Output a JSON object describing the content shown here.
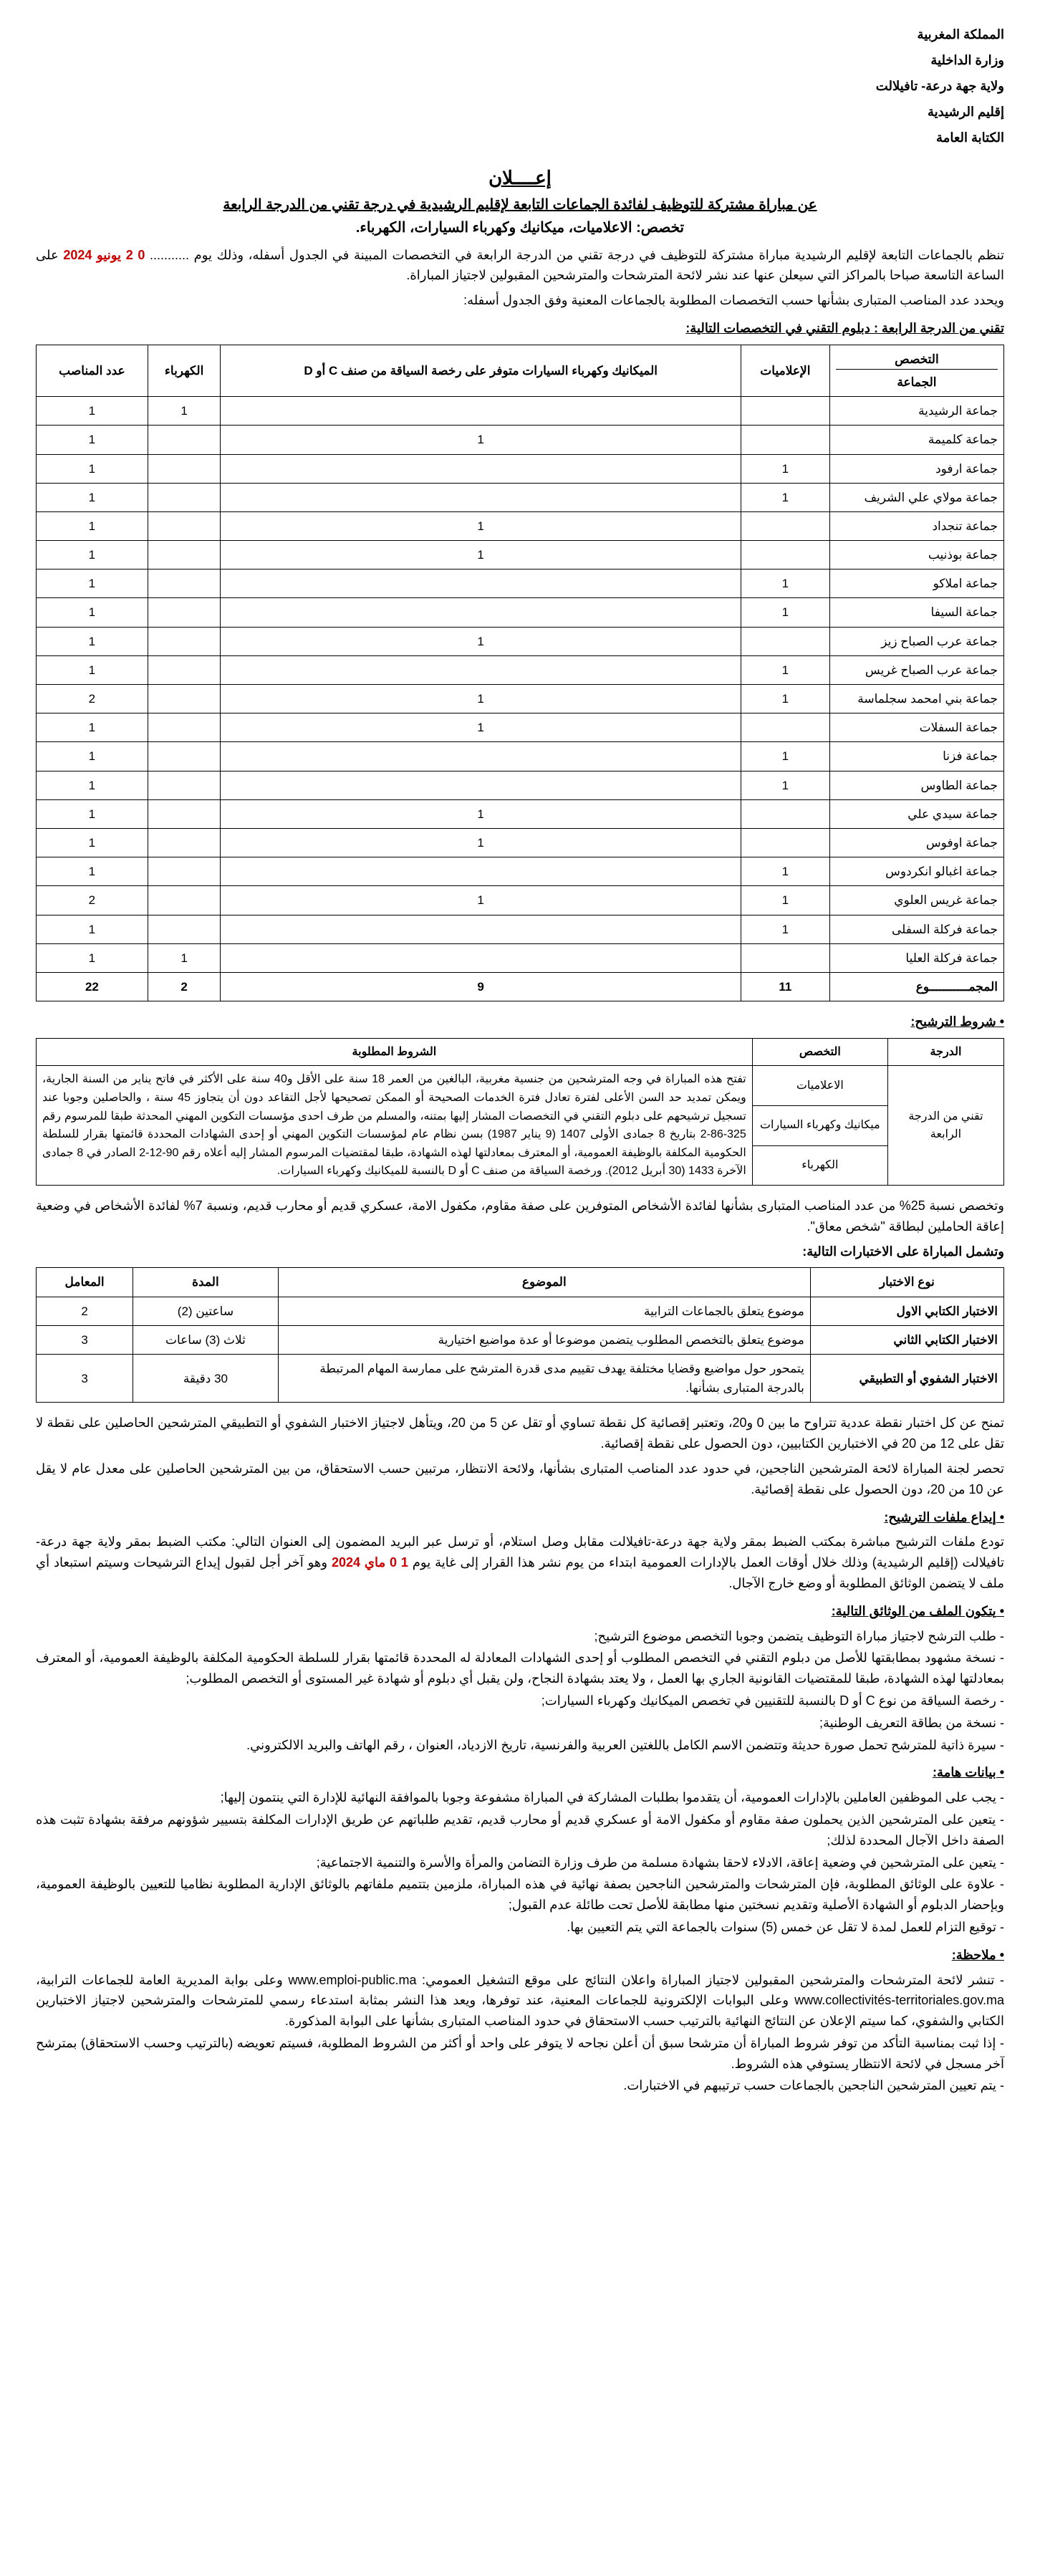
{
  "header": {
    "l1": "المملكة المغربية",
    "l2": "وزارة الداخلية",
    "l3": "ولاية جهة درعة- تافيلالت",
    "l4": "إقليم الرشيدية",
    "l5": "الكتابة العامة"
  },
  "title": {
    "main": "إعــــلان",
    "sub": "عن مباراة مشتركة للتوظيف لفائدة الجماعات التابعة لإقليم الرشيدية في درجة تقني من الدرجة الرابعة",
    "spec": "تخصص: الاعلاميات، ميكانيك وكهرباء السيارات، الكهرباء."
  },
  "intro": {
    "p1": "تنظم بالجماعات التابعة لإقليم الرشيدية مباراة مشتركة للتوظيف في درجة تقني من الدرجة الرابعة في التخصصات المبينة في الجدول أسفله، وذلك يوم",
    "date1_pre": "...........",
    "date1_num": "0 2",
    "date1_mid": "يونيو",
    "date1_year": "2024",
    "p1b": "على الساعة التاسعة صباحا بالمراكز التي سيعلن عنها عند نشر لائحة المترشحات والمترشحين المقبولين لاجتياز المباراة.",
    "p2": "ويحدد عدد المناصب المتبارى بشأنها حسب التخصصات المطلوبة بالجماعات المعنية وفق الجدول أسفله:"
  },
  "section1_title": "تقني من الدرجة الرابعة : دبلوم التقني في التخصصات التالية:",
  "table1": {
    "head": {
      "c_spec": "التخصص",
      "c_jam": "الجماعة",
      "c_info": "الإعلاميات",
      "c_mech": "الميكانيك وكهرباء السيارات متوفر على رخصة السياقة من صنف C أو D",
      "c_elec": "الكهرباء",
      "c_count": "عدد المناصب"
    },
    "rows": [
      {
        "jam": "جماعة الرشيدية",
        "info": "",
        "mech": "",
        "elec": "1",
        "cnt": "1"
      },
      {
        "jam": "جماعة كلميمة",
        "info": "",
        "mech": "1",
        "elec": "",
        "cnt": "1"
      },
      {
        "jam": "جماعة ارفود",
        "info": "1",
        "mech": "",
        "elec": "",
        "cnt": "1"
      },
      {
        "jam": "جماعة مولاي علي الشريف",
        "info": "1",
        "mech": "",
        "elec": "",
        "cnt": "1"
      },
      {
        "jam": "جماعة تنجداد",
        "info": "",
        "mech": "1",
        "elec": "",
        "cnt": "1"
      },
      {
        "jam": "جماعة بوذنيب",
        "info": "",
        "mech": "1",
        "elec": "",
        "cnt": "1"
      },
      {
        "jam": "جماعة املاكو",
        "info": "1",
        "mech": "",
        "elec": "",
        "cnt": "1"
      },
      {
        "jam": "جماعة السيفا",
        "info": "1",
        "mech": "",
        "elec": "",
        "cnt": "1"
      },
      {
        "jam": "جماعة عرب الصباح زيز",
        "info": "",
        "mech": "1",
        "elec": "",
        "cnt": "1"
      },
      {
        "jam": "جماعة عرب الصباح غريس",
        "info": "1",
        "mech": "",
        "elec": "",
        "cnt": "1"
      },
      {
        "jam": "جماعة بني امحمد سجلماسة",
        "info": "1",
        "mech": "1",
        "elec": "",
        "cnt": "2"
      },
      {
        "jam": "جماعة السفلات",
        "info": "",
        "mech": "1",
        "elec": "",
        "cnt": "1"
      },
      {
        "jam": "جماعة فزنا",
        "info": "1",
        "mech": "",
        "elec": "",
        "cnt": "1"
      },
      {
        "jam": "جماعة الطاوس",
        "info": "1",
        "mech": "",
        "elec": "",
        "cnt": "1"
      },
      {
        "jam": "جماعة سيدي علي",
        "info": "",
        "mech": "1",
        "elec": "",
        "cnt": "1"
      },
      {
        "jam": "جماعة اوفوس",
        "info": "",
        "mech": "1",
        "elec": "",
        "cnt": "1"
      },
      {
        "jam": "جماعة اغبالو انكردوس",
        "info": "1",
        "mech": "",
        "elec": "",
        "cnt": "1"
      },
      {
        "jam": "جماعة غريس العلوي",
        "info": "1",
        "mech": "1",
        "elec": "",
        "cnt": "2"
      },
      {
        "jam": "جماعة فركلة السفلى",
        "info": "1",
        "mech": "",
        "elec": "",
        "cnt": "1"
      },
      {
        "jam": "جماعة فركلة العليا",
        "info": "",
        "mech": "",
        "elec": "1",
        "cnt": "1"
      }
    ],
    "total": {
      "label": "المجمـــــــــــوع",
      "info": "11",
      "mech": "9",
      "elec": "2",
      "cnt": "22"
    }
  },
  "cond_title": "شروط الترشيح:",
  "table2": {
    "h_deg": "الدرجة",
    "h_spec": "التخصص",
    "h_cond": "الشروط المطلوبة",
    "deg": "تقني من الدرجة الرابعة",
    "specs": [
      "الاعلاميات",
      "ميكانيك وكهرباء السيارات",
      "الكهرباء"
    ],
    "cond": "تفتح هذه المباراة في وجه المترشحين من جنسية مغربية، البالغين من العمر 18 سنة على الأقل و40 سنة على الأكثر في فاتح يناير من السنة الجارية، ويمكن تمديد حد السن الأعلى لفترة تعادل فترة الخدمات الصحيحة أو الممكن تصحيحها لأجل التقاعد دون أن يتجاوز 45 سنة ، والحاصلين وجوبا عند تسجيل ترشيحهم على دبلوم التقني في التخصصات المشار إليها بمتنه، والمسلم من طرف احدى مؤسسات التكوين المهني المحدثة طبقا للمرسوم رقم 325-86-2 بتاريخ 8 جمادى الأولى 1407 (9 يناير 1987) بسن نظام عام لمؤسسات التكوين المهني أو إحدى الشهادات المحددة قائمتها بقرار للسلطة الحكومية المكلفة بالوظيفة العمومية، أو المعترف بمعادلتها لهذه الشهادة، طبقا لمقتضيات المرسوم المشار إليه أعلاه رقم 90-12-2 الصادر في 8 جمادى الآخرة 1433 (30 أبريل 2012). ورخصة السياقة من صنف C أو D بالنسبة للميكانيك وكهرباء السيارات."
  },
  "quota": "وتخصص نسبة 25% من عدد المناصب المتبارى بشأنها لفائدة الأشخاص المتوفرين على صفة مقاوم، مكفول الامة، عسكري قديم أو محارب قديم، ونسبة 7% لفائدة الأشخاص في وضعية إعاقة الحاملين لبطاقة \"شخص معاق\".",
  "tests_intro": "وتشمل المباراة على الاختبارات التالية:",
  "table3": {
    "h_type": "نوع الاختبار",
    "h_subj": "الموضوع",
    "h_dur": "المدة",
    "h_coef": "المعامل",
    "rows": [
      {
        "type": "الاختبار الكتابي الاول",
        "subj": "موضوع يتعلق بالجماعات الترابية",
        "dur": "ساعتين (2)",
        "coef": "2"
      },
      {
        "type": "الاختبار الكتابي الثاني",
        "subj": "موضوع يتعلق بالتخصص المطلوب يتضمن موضوعا أو عدة مواضيع اختيارية",
        "dur": "ثلاث (3) ساعات",
        "coef": "3"
      },
      {
        "type": "الاختبار الشفوي أو التطبيقي",
        "subj": "يتمحور حول مواضيع وقضايا مختلفة يهدف تقييم مدى قدرة المترشح على ممارسة المهام المرتبطة بالدرجة المتبارى بشأنها.",
        "dur": "30 دقيقة",
        "coef": "3"
      }
    ]
  },
  "grading": "تمنح عن كل اختبار نقطة عددية تتراوح ما بين 0 و20، وتعتبر إقصائية كل نقطة تساوي أو تقل عن 5 من 20، ويتأهل لاجتياز الاختبار الشفوي أو التطبيقي المترشحين الحاصلين على نقطة لا تقل على 12 من 20 في الاختبارين الكتابيين، دون الحصول على نقطة إقصائية.",
  "jury": "تحصر لجنة المباراة لائحة المترشحين الناجحين، في حدود عدد المناصب المتبارى بشأنها، ولائحة الانتظار، مرتبين حسب الاستحقاق، من بين المترشحين الحاصلين على معدل عام لا يقل عن 10 من 20، دون الحصول على نقطة إقصائية.",
  "deposit_title": "إيداع ملفات الترشيح:",
  "deposit_p1": "تودع ملفات الترشيح مباشرة بمكتب الضبط بمقر ولاية جهة درعة-تافيلالت مقابل وصل استلام، أو ترسل عبر البريد المضمون إلى العنوان التالي: مكتب الضبط بمقر ولاية جهة درعة- تافيلالت (إقليم الرشيدية) وذلك خلال أوقات العمل بالإدارات العمومية ابتداء من يوم نشر هذا القرار إلى غاية يوم",
  "date2_num": "1 0",
  "date2_mid": "ماي",
  "date2_year": "2024",
  "deposit_p2": "وهو آخر أجل لقبول إيداع الترشيحات وسيتم استبعاد أي ملف لا يتضمن الوثائق المطلوبة أو وضع خارج الآجال.",
  "docs_title": "يتكون الملف من الوثائق التالية:",
  "docs": [
    "طلب الترشح لاجتياز مباراة التوظيف يتضمن وجوبا التخصص موضوع الترشيح;",
    "نسخة مشهود بمطابقتها للأصل من دبلوم التقني في التخصص المطلوب أو إحدى الشهادات المعادلة له المحددة قائمتها بقرار للسلطة الحكومية المكلفة بالوظيفة العمومية، أو المعترف بمعادلتها لهذه الشهادة، طبقا للمقتضيات القانونية الجاري بها العمل ، ولا يعتد بشهادة النجاح، ولن يقبل أي دبلوم أو شهادة غير المستوى أو التخصص المطلوب;",
    "رخصة السياقة من نوع C أو D بالنسبة للتقنيين في تخصص الميكانيك وكهرباء السيارات;",
    "نسخة من بطاقة التعريف الوطنية;",
    "سيرة ذاتية للمترشح تحمل صورة حديثة وتتضمن الاسم الكامل باللغتين العربية والفرنسية، تاريخ الازدياد، العنوان ، رقم الهاتف والبريد الالكتروني."
  ],
  "info_title": "بيانات هامة:",
  "info": [
    "يجب على الموظفين العاملين بالإدارات العمومية، أن يتقدموا بطلبات المشاركة في المباراة مشفوعة وجوبا بالموافقة النهائية للإدارة التي ينتمون إليها;",
    "يتعين على المترشحين الذين يحملون صفة مقاوم أو مكفول الامة أو عسكري قديم أو محارب قديم، تقديم طلباتهم عن طريق الإدارات المكلفة بتسيير شؤونهم مرفقة بشهادة تثبت هذه الصفة داخل الآجال المحددة لذلك;",
    "يتعين على المترشحين في وضعية إعاقة، الادلاء لاحقا بشهادة مسلمة من طرف وزارة التضامن والمرأة والأسرة والتنمية الاجتماعية;",
    "علاوة على الوثائق المطلوبة، فإن المترشحات والمترشحين الناجحين بصفة نهائية في هذه المباراة، ملزمين بتتميم ملفاتهم بالوثائق الإدارية المطلوبة نظاميا للتعيين بالوظيفة العمومية، وبإحضار الدبلوم أو الشهادة الأصلية وتقديم نسختين منها مطابقة للأصل تحت طائلة عدم القبول;",
    "توقيع التزام للعمل لمدة لا تقل عن خمس (5) سنوات بالجماعة التي يتم التعيين بها."
  ],
  "note_title": "ملاحظة:",
  "note": [
    "تنشر لائحة المترشحات والمترشحين المقبولين لاجتياز المباراة واعلان النتائج على موقع التشغيل العمومي: www.emploi-public.ma وعلى بوابة المديرية العامة للجماعات الترابية، www.collectivités-territoriales.gov.ma وعلى البوابات الإلكترونية للجماعات المعنية، عند توفرها، ويعد هذا النشر بمثابة استدعاء رسمي للمترشحات والمترشحين لاجتياز الاختبارين الكتابي والشفوي، كما سيتم الإعلان عن النتائج النهائية بالترتيب حسب الاستحقاق في حدود المناصب المتبارى بشأنها على البوابة المذكورة.",
    "إذا ثبت بمناسبة التأكد من توفر شروط المباراة أن مترشحا سبق أن أعلن نجاحه لا يتوفر على واحد أو أكثر من الشروط المطلوبة، فسيتم تعويضه (بالترتيب وحسب الاستحقاق) بمترشح آخر مسجل في لائحة الانتظار يستوفي هذه الشروط.",
    "يتم تعيين المترشحين الناجحين بالجماعات حسب ترتيبهم في الاختبارات."
  ]
}
